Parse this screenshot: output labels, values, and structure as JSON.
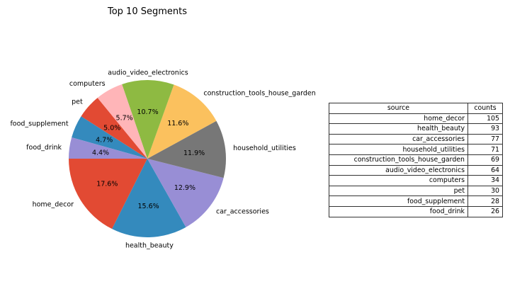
{
  "chart_data": [
    {
      "type": "pie",
      "title": "Top 10 Segments",
      "start_angle_deg": 180,
      "direction": "counterclockwise",
      "slices": [
        {
          "label": "home_decor",
          "value": 105,
          "pct_label": "17.6%",
          "color": "#e24a33"
        },
        {
          "label": "health_beauty",
          "value": 93,
          "pct_label": "15.6%",
          "color": "#348abd"
        },
        {
          "label": "car_accessories",
          "value": 77,
          "pct_label": "12.9%",
          "color": "#988ed5"
        },
        {
          "label": "household_utilities",
          "value": 71,
          "pct_label": "11.9%",
          "color": "#777777"
        },
        {
          "label": "construction_tools_house_garden",
          "value": 69,
          "pct_label": "11.6%",
          "color": "#fbc15e"
        },
        {
          "label": "audio_video_electronics",
          "value": 64,
          "pct_label": "10.7%",
          "color": "#8eba42"
        },
        {
          "label": "computers",
          "value": 34,
          "pct_label": "5.7%",
          "color": "#ffb5b8"
        },
        {
          "label": "pet",
          "value": 30,
          "pct_label": "5.0%",
          "color": "#e24a33"
        },
        {
          "label": "food_supplement",
          "value": 28,
          "pct_label": "4.7%",
          "color": "#348abd"
        },
        {
          "label": "food_drink",
          "value": 26,
          "pct_label": "4.4%",
          "color": "#988ed5"
        }
      ]
    },
    {
      "type": "table",
      "columns": [
        "source",
        "counts"
      ],
      "rows": [
        [
          "home_decor",
          "105"
        ],
        [
          "health_beauty",
          "93"
        ],
        [
          "car_accessories",
          "77"
        ],
        [
          "household_utilities",
          "71"
        ],
        [
          "construction_tools_house_garden",
          "69"
        ],
        [
          "audio_video_electronics",
          "64"
        ],
        [
          "computers",
          "34"
        ],
        [
          "pet",
          "30"
        ],
        [
          "food_supplement",
          "28"
        ],
        [
          "food_drink",
          "26"
        ]
      ]
    }
  ]
}
